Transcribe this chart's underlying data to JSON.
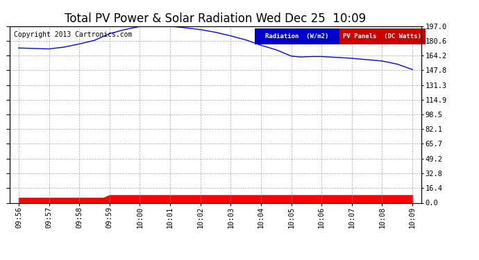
{
  "title": "Total PV Power & Solar Radiation Wed Dec 25  10:09",
  "copyright": "Copyright 2013 Cartronics.com",
  "legend_radiation": "Radiation  (W/m2)",
  "legend_pv": "PV Panels  (DC Watts)",
  "x_labels": [
    "09:56",
    "09:57",
    "09:58",
    "09:59",
    "10:00",
    "10:01",
    "10:02",
    "10:03",
    "10:04",
    "10:05",
    "10:06",
    "10:07",
    "10:08",
    "10:09"
  ],
  "rad_x": [
    0,
    0.5,
    1,
    1.5,
    2,
    2.5,
    3,
    3.5,
    4,
    4.2,
    4.5,
    5,
    5.5,
    6,
    6.5,
    7,
    7.5,
    8,
    8.5,
    9,
    9.3,
    9.7,
    10,
    10.5,
    11,
    11.5,
    12,
    12.5,
    13
  ],
  "rad_y": [
    172.5,
    172.0,
    171.5,
    173.5,
    177.0,
    181.0,
    188.5,
    193.0,
    196.5,
    197.0,
    197.0,
    196.8,
    195.0,
    193.0,
    190.0,
    186.0,
    181.5,
    175.5,
    170.5,
    163.5,
    162.5,
    163.0,
    163.0,
    162.0,
    161.0,
    159.5,
    158.0,
    154.5,
    148.5
  ],
  "pv_x": [
    0,
    0.5,
    0.9,
    1.0,
    1.8,
    2.0,
    2.4,
    2.5,
    2.8,
    3.0,
    3.3,
    3.5,
    3.8,
    4.0,
    4.5,
    5.0,
    5.5,
    6.0,
    6.5,
    7.0,
    7.5,
    7.8,
    8.0,
    8.5,
    9.0,
    9.5,
    10.0,
    10.3,
    10.8,
    11.0,
    11.5,
    12.0,
    12.5,
    12.8,
    13.0
  ],
  "pv_y": [
    5.5,
    5.5,
    5.5,
    5.5,
    5.5,
    5.5,
    5.5,
    5.5,
    5.5,
    8.5,
    8.5,
    8.5,
    8.5,
    8.5,
    8.5,
    8.5,
    8.5,
    8.5,
    8.5,
    8.5,
    8.5,
    8.5,
    8.5,
    8.5,
    8.5,
    8.5,
    8.5,
    8.5,
    8.5,
    8.5,
    8.5,
    8.5,
    8.5,
    8.5,
    8.5
  ],
  "yticks": [
    0.0,
    16.4,
    32.8,
    49.2,
    65.7,
    82.1,
    98.5,
    114.9,
    131.3,
    147.8,
    164.2,
    180.6,
    197.0
  ],
  "ylim": [
    0.0,
    197.0
  ],
  "xlim": [
    -0.3,
    13.3
  ],
  "bg_color": "#ffffff",
  "grid_color": "#aaaaaa",
  "radiation_color": "#0000ff",
  "pv_color": "#ff0000",
  "legend_radiation_bg": "#0000cc",
  "legend_pv_bg": "#cc0000",
  "title_fontsize": 12,
  "tick_fontsize": 7.5,
  "copyright_fontsize": 7
}
